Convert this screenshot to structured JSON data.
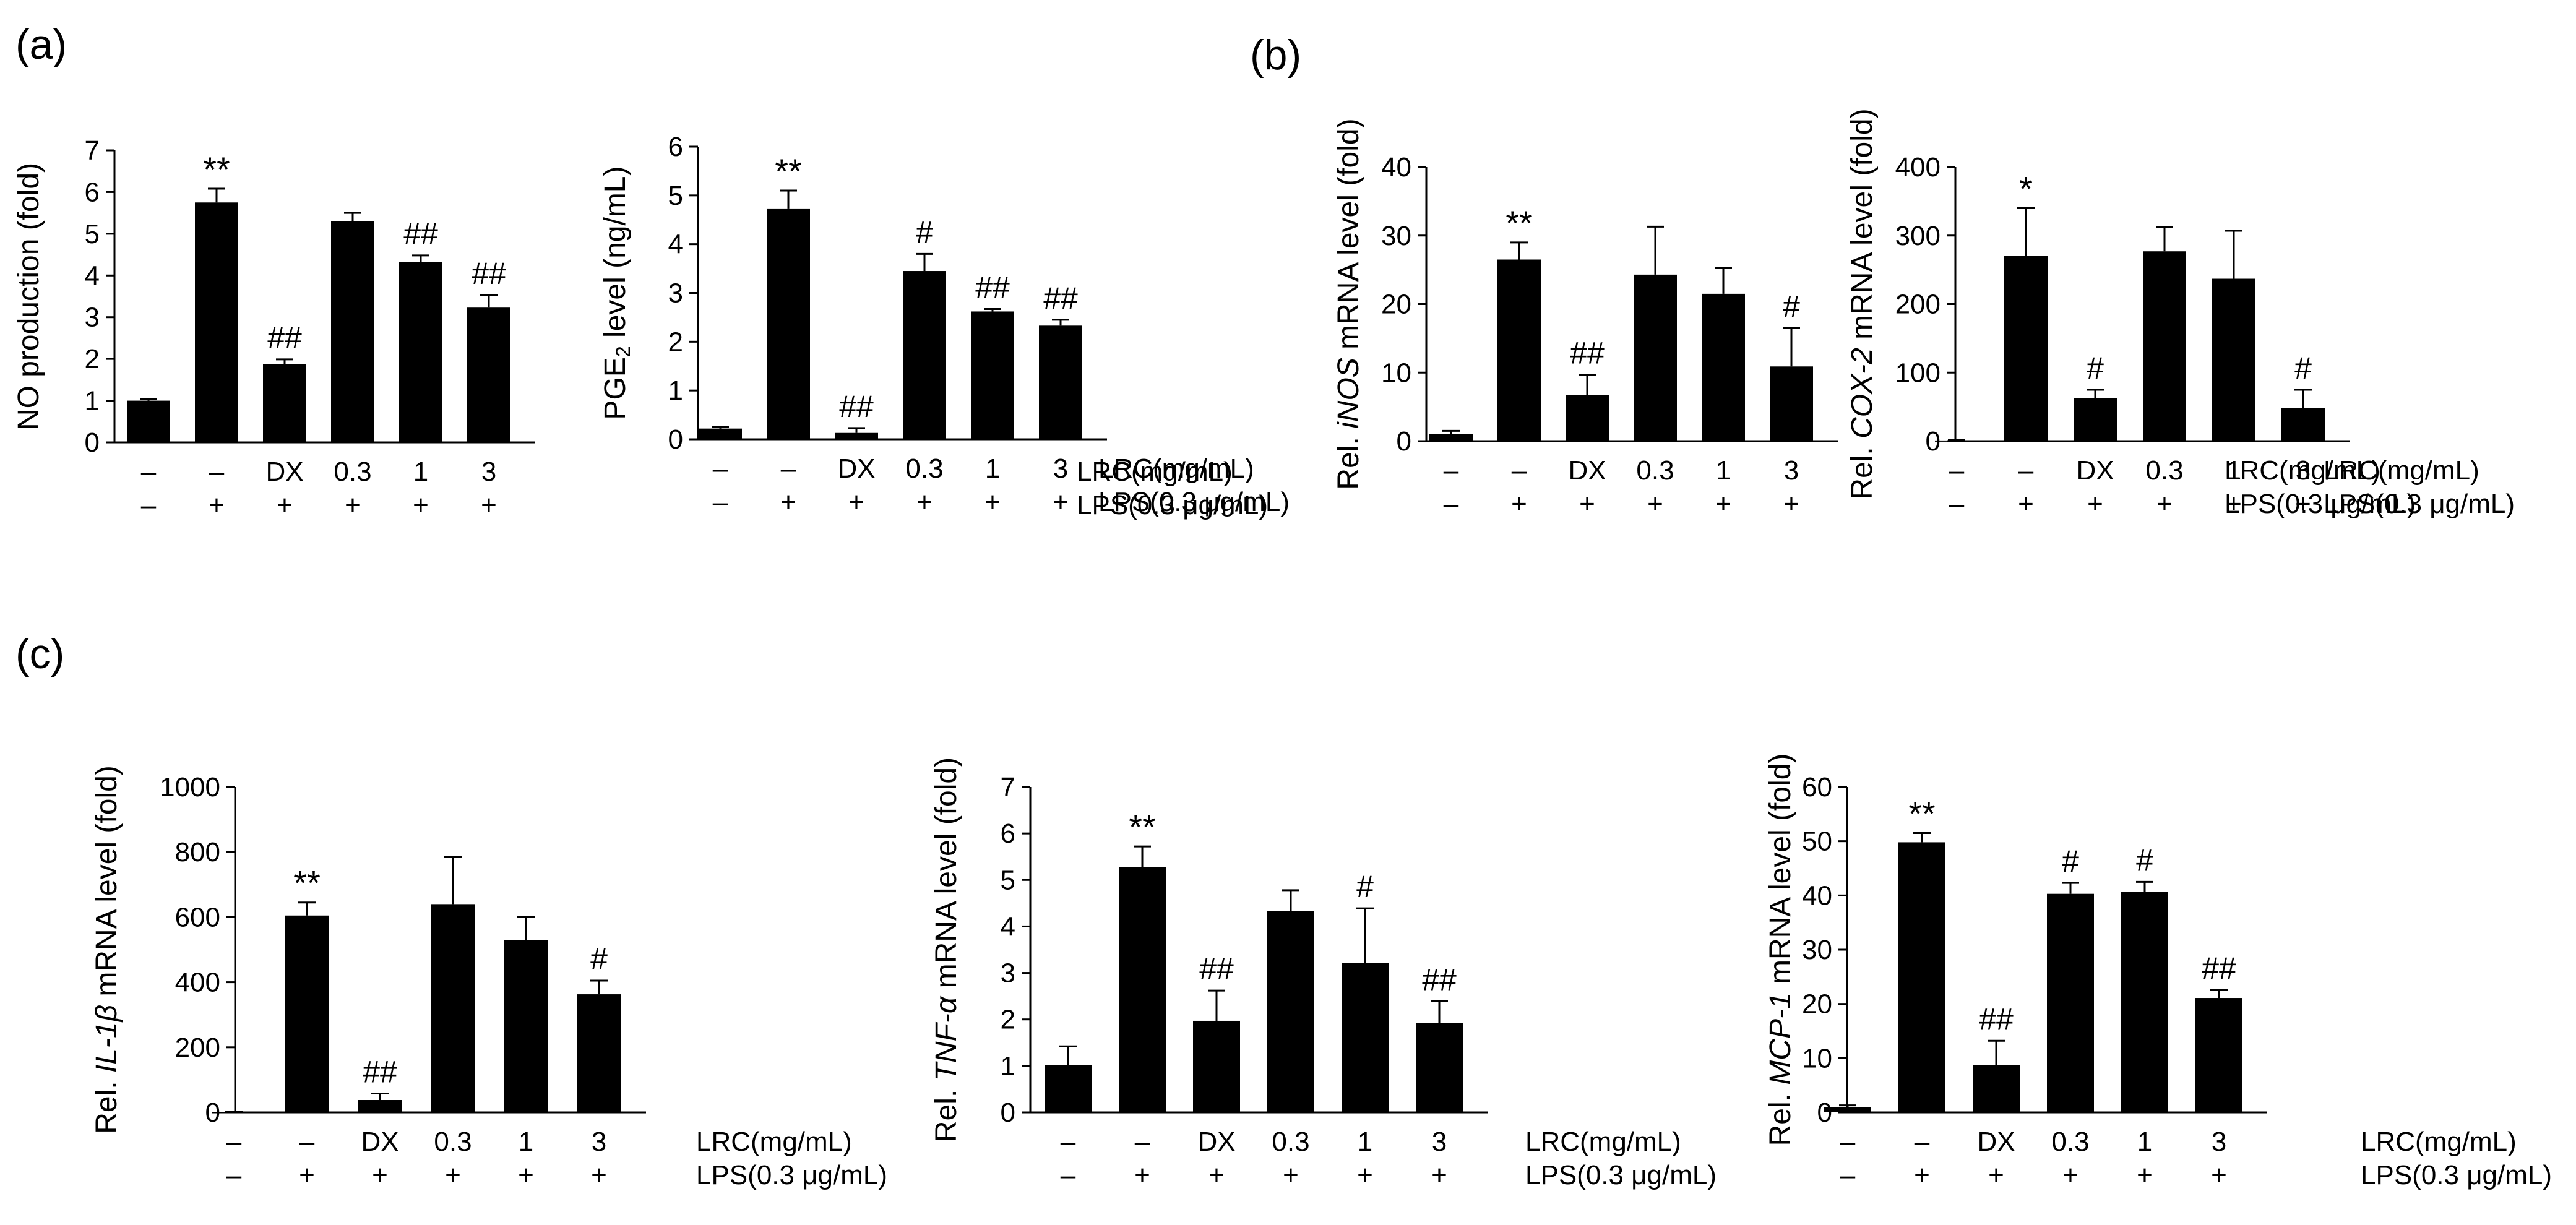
{
  "panel_labels": [
    "(a)",
    "(b)",
    "(c)"
  ],
  "conditions": {
    "lrc_label": "LRC(mg/mL)",
    "lps_label": "LPS(0.3 μg/mL)",
    "lrc": [
      "–",
      "–",
      "DX",
      "0.3",
      "1",
      "3"
    ],
    "lps": [
      "–",
      "+",
      "+",
      "+",
      "+",
      "+"
    ]
  },
  "chart_data": [
    {
      "type": "bar",
      "panel": "(a)",
      "ylabel_parts": [
        {
          "t": "NO production (fold)"
        }
      ],
      "categories": [
        "–/–",
        "–/+",
        "DX/+",
        "0.3/+",
        "1/+",
        "3/+"
      ],
      "values": [
        1.0,
        5.75,
        1.87,
        5.3,
        4.33,
        3.23
      ],
      "errors": [
        0.03,
        0.33,
        0.12,
        0.2,
        0.15,
        0.3
      ],
      "annotations": [
        "",
        "**",
        "##",
        "",
        "##",
        "##"
      ],
      "ylim": [
        0,
        7
      ],
      "yticks": [
        "0",
        "1",
        "2",
        "3",
        "4",
        "5",
        "6",
        "7"
      ],
      "ytick_values": [
        0,
        1,
        2,
        3,
        4,
        5,
        6,
        7
      ]
    },
    {
      "type": "bar",
      "panel": "(a)",
      "ylabel_parts": [
        {
          "t": "PGE"
        },
        {
          "t": "2",
          "sub": true
        },
        {
          "t": " level (ng/mL)"
        }
      ],
      "categories": [
        "–/–",
        "–/+",
        "DX/+",
        "0.3/+",
        "1/+",
        "3/+"
      ],
      "values": [
        0.22,
        4.72,
        0.13,
        3.45,
        2.62,
        2.33
      ],
      "errors": [
        0.03,
        0.38,
        0.1,
        0.35,
        0.05,
        0.12
      ],
      "annotations": [
        "",
        "**",
        "##",
        "#",
        "##",
        "##"
      ],
      "ylim": [
        0,
        6
      ],
      "yticks": [
        "0",
        "1",
        "2",
        "3",
        "4",
        "5",
        "6"
      ],
      "ytick_values": [
        0,
        1,
        2,
        3,
        4,
        5,
        6
      ]
    },
    {
      "type": "bar",
      "panel": "(b)",
      "ylabel_parts": [
        {
          "t": "Rel. "
        },
        {
          "t": "iNOS",
          "italic": true
        },
        {
          "t": " mRNA level (fold)"
        }
      ],
      "categories": [
        "–/–",
        "–/+",
        "DX/+",
        "0.3/+",
        "1/+",
        "3/+"
      ],
      "values": [
        1.0,
        26.5,
        6.7,
        24.3,
        21.5,
        10.9
      ],
      "errors": [
        0.5,
        2.5,
        3.0,
        7.0,
        3.8,
        5.6
      ],
      "annotations": [
        "",
        "**",
        "##",
        "",
        "",
        "#"
      ],
      "ylim": [
        0,
        40
      ],
      "yticks": [
        "0",
        "10",
        "20",
        "30",
        "40"
      ],
      "ytick_values": [
        0,
        10,
        20,
        30,
        40
      ]
    },
    {
      "type": "bar",
      "panel": "(b)",
      "ylabel_parts": [
        {
          "t": "Rel. "
        },
        {
          "t": "COX-2",
          "italic": true
        },
        {
          "t": " mRNA level (fold)"
        }
      ],
      "categories": [
        "–/–",
        "–/+",
        "DX/+",
        "0.3/+",
        "1/+",
        "3/+"
      ],
      "values": [
        1.0,
        270.0,
        63.0,
        277.0,
        237.0,
        48.0
      ],
      "errors": [
        0.5,
        70.0,
        12.0,
        35.0,
        70.0,
        27.0
      ],
      "annotations": [
        "",
        "*",
        "#",
        "",
        "",
        "#"
      ],
      "ylim": [
        0,
        400
      ],
      "yticks": [
        "0",
        "100",
        "200",
        "300",
        "400"
      ],
      "ytick_values": [
        0,
        100,
        200,
        300,
        400
      ]
    },
    {
      "type": "bar",
      "panel": "(c)",
      "ylabel_parts": [
        {
          "t": "Rel. "
        },
        {
          "t": "IL-1β",
          "italic": true
        },
        {
          "t": " mRNA level (fold)"
        }
      ],
      "categories": [
        "–/–",
        "–/+",
        "DX/+",
        "0.3/+",
        "1/+",
        "3/+"
      ],
      "values": [
        1.0,
        605.0,
        38.0,
        640.0,
        530.0,
        363.0
      ],
      "errors": [
        0.5,
        40.0,
        20.0,
        145.0,
        70.0,
        42.0
      ],
      "annotations": [
        "",
        "**",
        "##",
        "",
        "",
        "#"
      ],
      "ylim": [
        0,
        1000
      ],
      "yticks": [
        "0",
        "200",
        "400",
        "600",
        "800",
        "1000"
      ],
      "ytick_values": [
        0,
        200,
        400,
        600,
        800,
        1000
      ]
    },
    {
      "type": "bar",
      "panel": "(c)",
      "ylabel_parts": [
        {
          "t": "Rel. "
        },
        {
          "t": "TNF-α",
          "italic": true
        },
        {
          "t": " mRNA level (fold)"
        }
      ],
      "categories": [
        "–/–",
        "–/+",
        "DX/+",
        "0.3/+",
        "1/+",
        "3/+"
      ],
      "values": [
        1.02,
        5.27,
        1.97,
        4.33,
        3.22,
        1.92
      ],
      "errors": [
        0.4,
        0.45,
        0.65,
        0.45,
        1.17,
        0.47
      ],
      "annotations": [
        "",
        "**",
        "##",
        "",
        "#",
        "##"
      ],
      "ylim": [
        0,
        7
      ],
      "yticks": [
        "0",
        "1",
        "2",
        "3",
        "4",
        "5",
        "6",
        "7"
      ],
      "ytick_values": [
        0,
        1,
        2,
        3,
        4,
        5,
        6,
        7
      ]
    },
    {
      "type": "bar",
      "panel": "(c)",
      "ylabel_parts": [
        {
          "t": "Rel. "
        },
        {
          "t": "MCP-1",
          "italic": true
        },
        {
          "t": " mRNA level (fold)"
        }
      ],
      "categories": [
        "–/–",
        "–/+",
        "DX/+",
        "0.3/+",
        "1/+",
        "3/+"
      ],
      "values": [
        1.0,
        49.8,
        8.7,
        40.3,
        40.7,
        21.1
      ],
      "errors": [
        0.3,
        1.7,
        4.5,
        2.0,
        1.8,
        1.5
      ],
      "annotations": [
        "",
        "**",
        "##",
        "#",
        "#",
        "##"
      ],
      "ylim": [
        0,
        60
      ],
      "yticks": [
        "0",
        "10",
        "20",
        "30",
        "40",
        "50",
        "60"
      ],
      "ytick_values": [
        0,
        10,
        20,
        30,
        40,
        50,
        60
      ]
    }
  ]
}
